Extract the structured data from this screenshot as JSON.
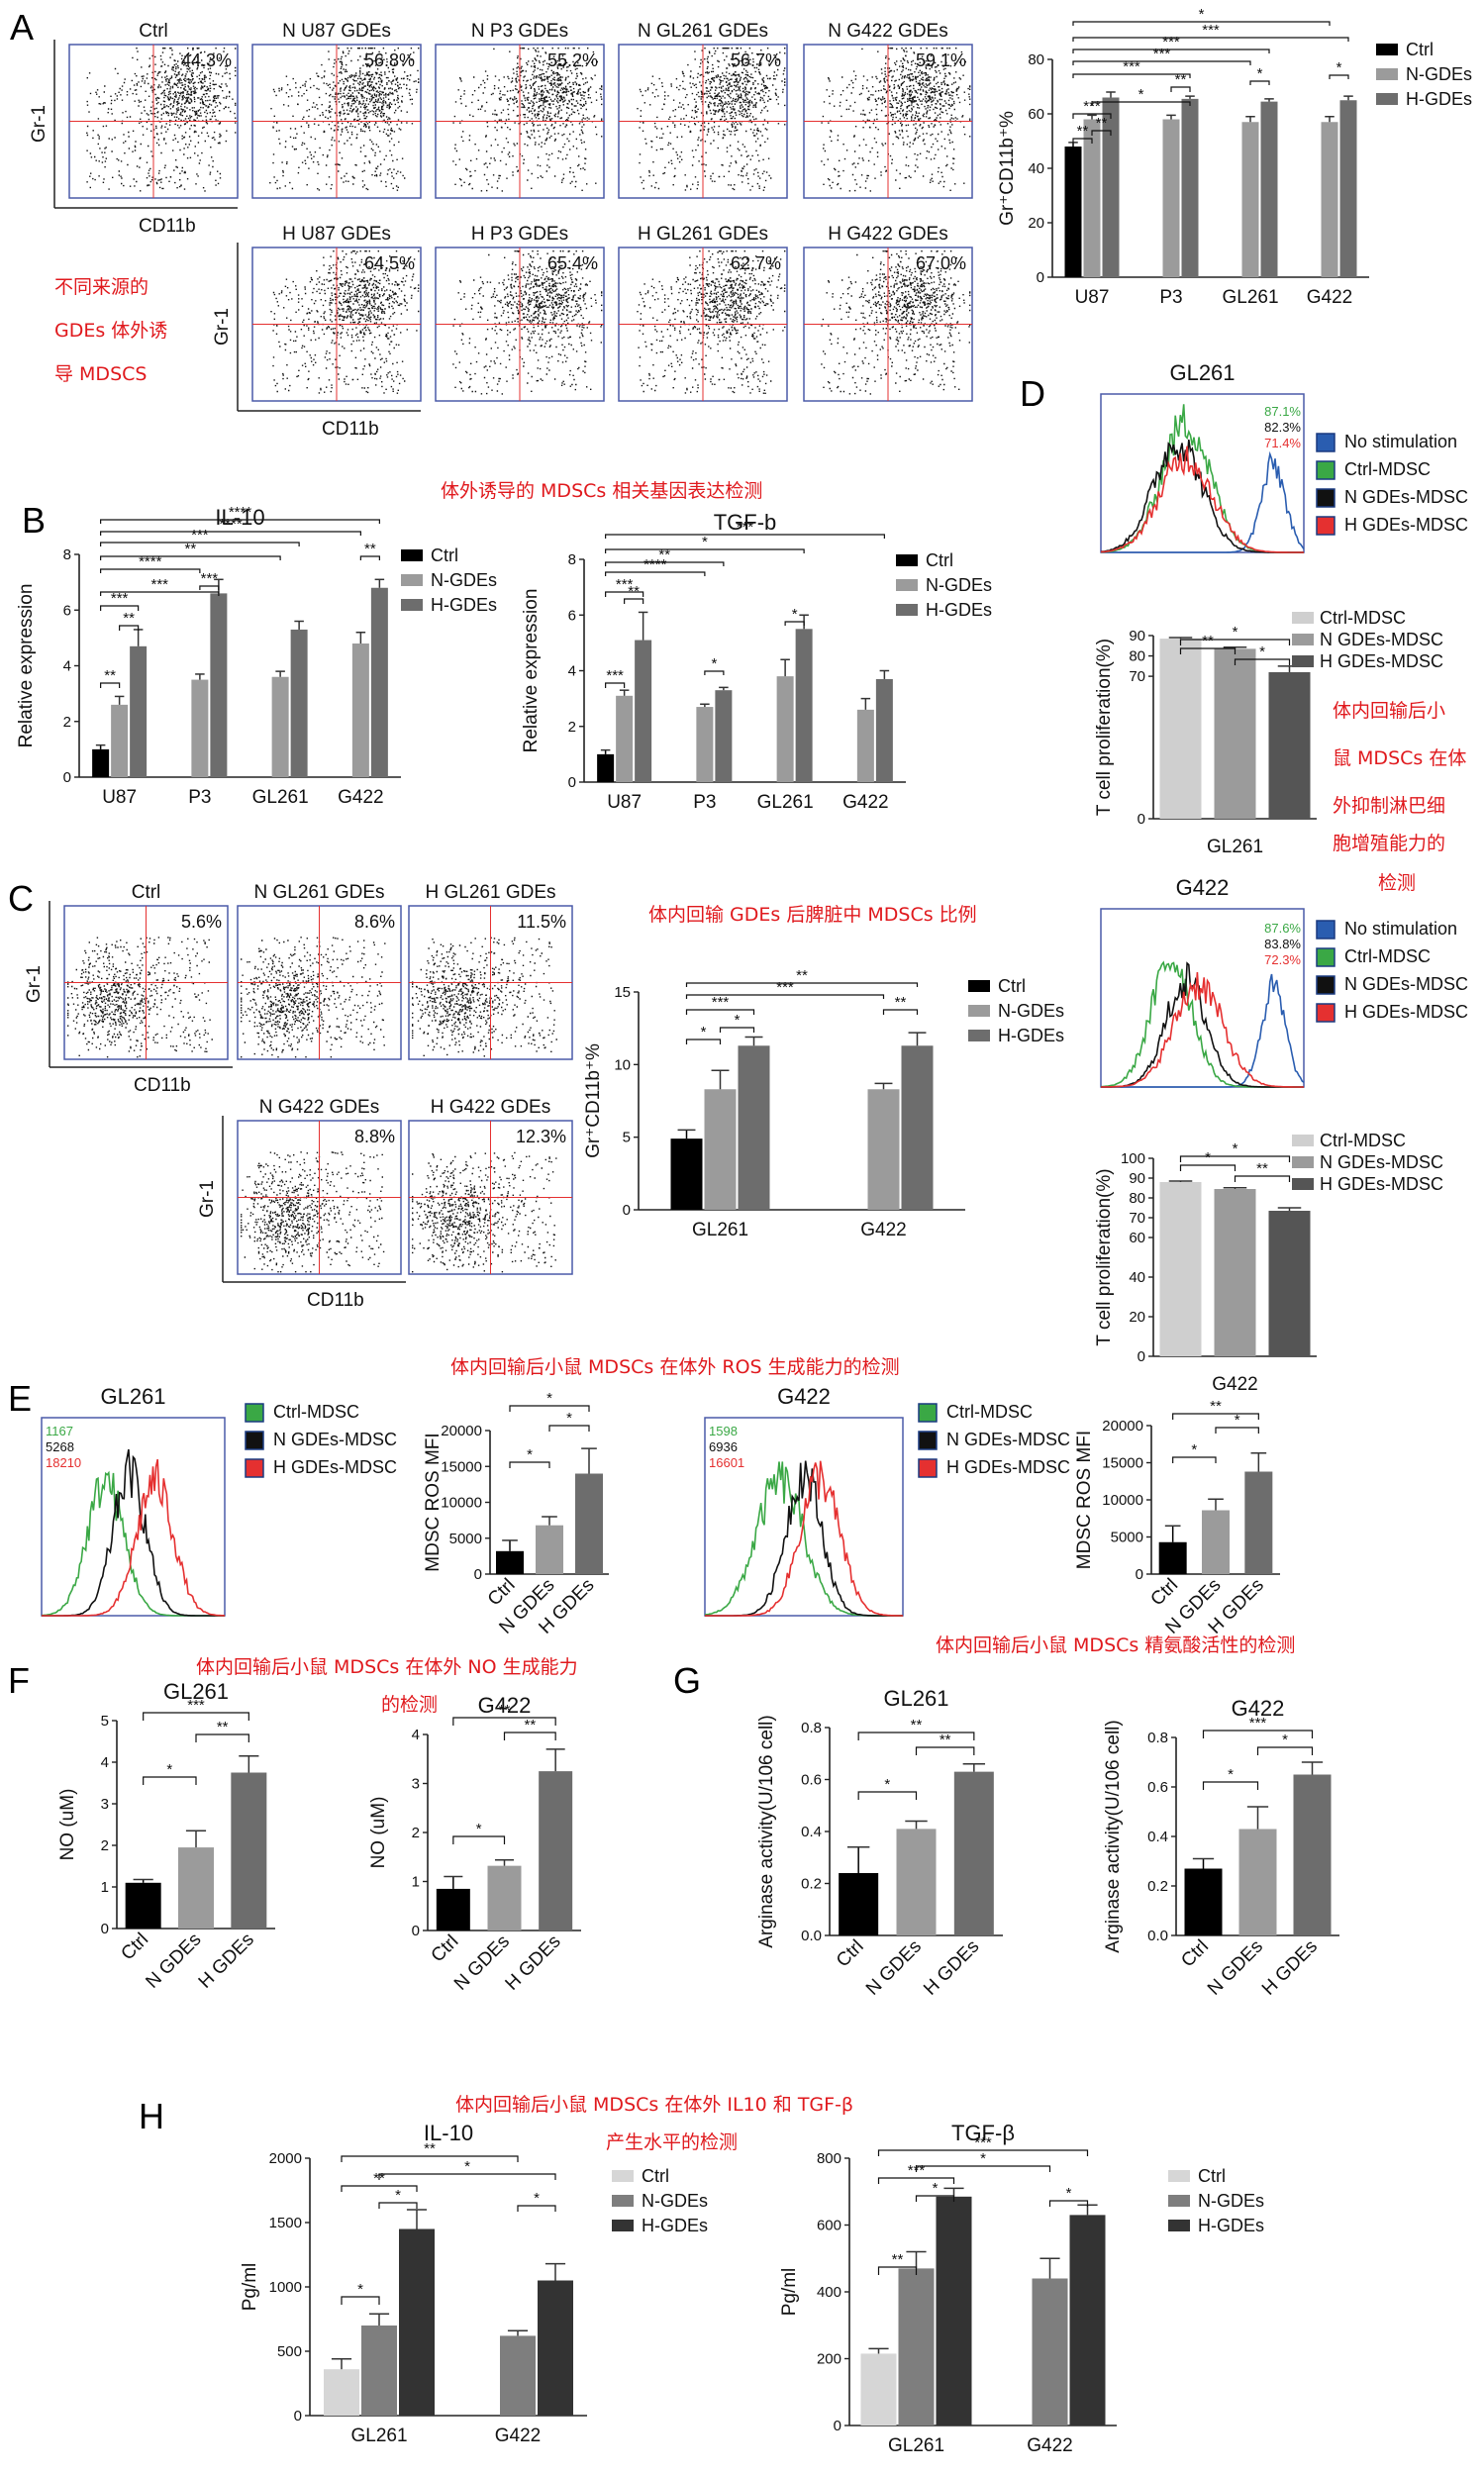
{
  "panels": {
    "A": {
      "letter": "A",
      "flow_plots": [
        {
          "title": "Ctrl",
          "pct": "44.3%"
        },
        {
          "title": "N U87 GDEs",
          "pct": "56.8%"
        },
        {
          "title": "N P3 GDEs",
          "pct": "55.2%"
        },
        {
          "title": "N GL261 GDEs",
          "pct": "56.7%"
        },
        {
          "title": "N G422 GDEs",
          "pct": "59.1%"
        },
        {
          "title": "H U87 GDEs",
          "pct": "64.5%"
        },
        {
          "title": "H P3 GDEs",
          "pct": "65.4%"
        },
        {
          "title": "H GL261 GDEs",
          "pct": "62.7%"
        },
        {
          "title": "H G422 GDEs",
          "pct": "67.0%"
        }
      ],
      "flow_xlabel": "CD11b",
      "flow_ylabel": "Gr-1",
      "annotation": [
        "不同来源的",
        "GDEs 体外诱",
        "导 MDSCS"
      ]
    },
    "B": {
      "letter": "B",
      "annotation": "体外诱导的 MDSCs 相关基因表达检测"
    },
    "C": {
      "letter": "C",
      "flow_plots": [
        {
          "title": "Ctrl",
          "pct": "5.6%"
        },
        {
          "title": "N GL261 GDEs",
          "pct": "8.6%"
        },
        {
          "title": "H GL261 GDEs",
          "pct": "11.5%"
        },
        {
          "title": "N G422 GDEs",
          "pct": "8.8%"
        },
        {
          "title": "H G422 GDEs",
          "pct": "12.3%"
        }
      ],
      "flow_xlabel": "CD11b",
      "flow_ylabel": "Gr-1",
      "annotation": "体内回输 GDEs 后脾脏中 MDSCs 比例"
    },
    "D": {
      "letter": "D",
      "histograms": [
        {
          "title": "GL261",
          "labels": [
            "87.1%",
            "82.3%",
            "71.4%"
          ]
        },
        {
          "title": "G422",
          "labels": [
            "87.6%",
            "83.8%",
            "72.3%"
          ]
        }
      ],
      "legend": [
        "No stimulation",
        "Ctrl-MDSC",
        "N GDEs-MDSC",
        "H GDEs-MDSC"
      ],
      "annotation": [
        "体内回输后小",
        "鼠 MDSCs 在体",
        "外抑制淋巴细",
        "胞增殖能力的",
        "检测"
      ]
    },
    "E": {
      "letter": "E",
      "histograms": [
        {
          "title": "GL261",
          "labels": [
            "1167",
            "5268",
            "18210"
          ]
        },
        {
          "title": "G422",
          "labels": [
            "1598",
            "6936",
            "16601"
          ]
        }
      ],
      "legend": [
        "Ctrl-MDSC",
        "N GDEs-MDSC",
        "H GDEs-MDSC"
      ],
      "annotation": "体内回输后小鼠 MDSCs 在体外 ROS 生成能力的检测"
    },
    "F": {
      "letter": "F",
      "annotation": [
        "体内回输后小鼠 MDSCs 在体外 NO 生成能力",
        "的检测"
      ]
    },
    "G": {
      "letter": "G",
      "annotation": "体内回输后小鼠 MDSCs 精氨酸活性的检测"
    },
    "H": {
      "letter": "H",
      "annotation": [
        "体内回输后小鼠 MDSCs 在体外 IL10 和 TGF-β",
        "产生水平的检测"
      ]
    }
  },
  "colors": {
    "ctrl": "#000000",
    "n": "#9b9b9b",
    "h": "#6d6d6d",
    "axis": "#222222",
    "flow_box": "#4a5aa8",
    "red_text": "#e0191d",
    "green": "#3aa845",
    "blue": "#2a5db0",
    "red": "#e53030"
  },
  "chart_data": [
    {
      "id": "A_bar",
      "type": "bar",
      "ylabel": "Gr⁺CD11b⁺%",
      "categories": [
        "U87",
        "P3",
        "GL261",
        "G422"
      ],
      "ylim": [
        0,
        80
      ],
      "yticks": [
        0,
        20,
        40,
        60,
        80
      ],
      "series": [
        {
          "name": "Ctrl",
          "values": [
            48,
            null,
            null,
            null
          ],
          "errors": [
            1.5,
            null,
            null,
            null
          ]
        },
        {
          "name": "N-GDEs",
          "values": [
            58,
            58,
            57,
            57
          ],
          "errors": [
            1.5,
            1.5,
            2,
            2
          ]
        },
        {
          "name": "H-GDEs",
          "values": [
            66,
            65.5,
            64.5,
            65
          ],
          "errors": [
            2,
            1,
            1,
            1.5
          ]
        }
      ],
      "sig": [
        "**",
        "**",
        "***",
        "*",
        "**",
        "***",
        "***",
        "***",
        "***",
        "*",
        "*",
        "*"
      ]
    },
    {
      "id": "B_il10",
      "type": "bar",
      "title": "IL-10",
      "ylabel": "Relative expression",
      "categories": [
        "U87",
        "P3",
        "GL261",
        "G422"
      ],
      "ylim": [
        0,
        8
      ],
      "yticks": [
        0,
        2,
        4,
        6,
        8
      ],
      "series": [
        {
          "name": "Ctrl",
          "values": [
            1.0,
            null,
            null,
            null
          ],
          "errors": [
            0.15,
            null,
            null,
            null
          ]
        },
        {
          "name": "N-GDEs",
          "values": [
            2.6,
            3.5,
            3.6,
            4.8
          ],
          "errors": [
            0.3,
            0.2,
            0.2,
            0.4
          ]
        },
        {
          "name": "H-GDEs",
          "values": [
            4.7,
            6.6,
            5.3,
            6.8
          ],
          "errors": [
            0.6,
            0.5,
            0.3,
            0.3
          ]
        }
      ],
      "sig": [
        "**",
        "**",
        "***",
        "***",
        "***",
        "****",
        "**",
        "***",
        "****",
        "****",
        "**"
      ]
    },
    {
      "id": "B_tgfb",
      "type": "bar",
      "title": "TGF-b",
      "ylabel": "Relative expression",
      "categories": [
        "U87",
        "P3",
        "GL261",
        "G422"
      ],
      "ylim": [
        0,
        8
      ],
      "yticks": [
        0,
        2,
        4,
        6,
        8
      ],
      "series": [
        {
          "name": "Ctrl",
          "values": [
            1.0,
            null,
            null,
            null
          ],
          "errors": [
            0.15,
            null,
            null,
            null
          ]
        },
        {
          "name": "N-GDEs",
          "values": [
            3.1,
            2.7,
            3.8,
            2.6
          ],
          "errors": [
            0.2,
            0.1,
            0.6,
            0.4
          ]
        },
        {
          "name": "H-GDEs",
          "values": [
            5.1,
            3.3,
            5.5,
            3.7
          ],
          "errors": [
            1.0,
            0.1,
            0.5,
            0.3
          ]
        }
      ],
      "sig": [
        "***",
        "**",
        "***",
        "*",
        "****",
        "**",
        "*",
        "*",
        "***"
      ]
    },
    {
      "id": "C_bar",
      "type": "bar",
      "ylabel": "Gr⁺CD11b⁺%",
      "categories": [
        "GL261",
        "G422"
      ],
      "ylim": [
        0,
        15
      ],
      "yticks": [
        0,
        5,
        10,
        15
      ],
      "series": [
        {
          "name": "Ctrl",
          "values": [
            4.9,
            null
          ],
          "errors": [
            0.6,
            null
          ]
        },
        {
          "name": "N-GDEs",
          "values": [
            8.3,
            8.3
          ],
          "errors": [
            1.3,
            0.4
          ]
        },
        {
          "name": "H-GDEs",
          "values": [
            11.3,
            11.3
          ],
          "errors": [
            0.6,
            0.9
          ]
        }
      ],
      "sig": [
        "*",
        "*",
        "***",
        "**",
        "***",
        "**"
      ]
    },
    {
      "id": "D_gl261",
      "type": "bar",
      "ylabel": "T cell proliferation(%)",
      "xlabel": "GL261",
      "categories": [
        "Ctrl-MDSC",
        "N GDEs-MDSC",
        "H GDEs-MDSC"
      ],
      "ylim": [
        0,
        90
      ],
      "yticks": [
        0,
        70,
        80,
        90
      ],
      "values": [
        88.5,
        83.5,
        72
      ],
      "errors": [
        0.5,
        0.8,
        3
      ],
      "sig": [
        "**",
        "*",
        "*"
      ]
    },
    {
      "id": "D_g422",
      "type": "bar",
      "ylabel": "T cell proliferation(%)",
      "xlabel": "G422",
      "categories": [
        "Ctrl-MDSC",
        "N GDEs-MDSC",
        "H GDEs-MDSC"
      ],
      "ylim": [
        0,
        100
      ],
      "yticks": [
        0,
        20,
        40,
        60,
        70,
        80,
        90,
        100
      ],
      "values": [
        88,
        84.5,
        73.5
      ],
      "errors": [
        0.5,
        0.6,
        1.5
      ],
      "sig": [
        "*",
        "**",
        "*"
      ]
    },
    {
      "id": "E_gl261",
      "type": "bar",
      "ylabel": "MDSC ROS MFI",
      "categories": [
        "Ctrl",
        "N GDEs",
        "H GDEs"
      ],
      "ylim": [
        0,
        20000
      ],
      "yticks": [
        0,
        5000,
        10000,
        15000,
        20000
      ],
      "values": [
        3200,
        6800,
        14000
      ],
      "errors": [
        1500,
        1200,
        3500
      ],
      "sig": [
        "*",
        "*",
        "*"
      ]
    },
    {
      "id": "E_g422",
      "type": "bar",
      "ylabel": "MDSC ROS MFI",
      "categories": [
        "Ctrl",
        "N GDEs",
        "H GDEs"
      ],
      "ylim": [
        0,
        20000
      ],
      "yticks": [
        0,
        5000,
        10000,
        15000,
        20000
      ],
      "values": [
        4300,
        8600,
        13800
      ],
      "errors": [
        2200,
        1500,
        2500
      ],
      "sig": [
        "*",
        "*",
        "**"
      ]
    },
    {
      "id": "F_gl261",
      "type": "bar",
      "title": "GL261",
      "ylabel": "NO (uM)",
      "categories": [
        "Ctrl",
        "N GDEs",
        "H GDEs"
      ],
      "ylim": [
        0,
        5
      ],
      "yticks": [
        0,
        1,
        2,
        3,
        4,
        5
      ],
      "values": [
        1.1,
        1.95,
        3.75
      ],
      "errors": [
        0.08,
        0.4,
        0.4
      ],
      "sig": [
        "*",
        "**",
        "***"
      ]
    },
    {
      "id": "F_g422",
      "type": "bar",
      "title": "G422",
      "ylabel": "NO (uM)",
      "categories": [
        "Ctrl",
        "N GDEs",
        "H GDEs"
      ],
      "ylim": [
        0,
        4
      ],
      "yticks": [
        0,
        1,
        2,
        3,
        4
      ],
      "values": [
        0.85,
        1.32,
        3.25
      ],
      "errors": [
        0.25,
        0.12,
        0.45
      ],
      "sig": [
        "*",
        "**",
        "**"
      ]
    },
    {
      "id": "G_gl261",
      "type": "bar",
      "title": "GL261",
      "ylabel": "Arginase activity(U/106 cell)",
      "categories": [
        "Ctrl",
        "N GDEs",
        "H GDEs"
      ],
      "ylim": [
        0,
        0.8
      ],
      "yticks": [
        0.0,
        0.2,
        0.4,
        0.6,
        0.8
      ],
      "values": [
        0.24,
        0.41,
        0.63
      ],
      "errors": [
        0.1,
        0.03,
        0.03
      ],
      "sig": [
        "*",
        "**",
        "**"
      ]
    },
    {
      "id": "G_g422",
      "type": "bar",
      "title": "G422",
      "ylabel": "Arginase activity(U/106 cell)",
      "categories": [
        "Ctrl",
        "N GDEs",
        "H GDEs"
      ],
      "ylim": [
        0,
        0.8
      ],
      "yticks": [
        0.0,
        0.2,
        0.4,
        0.6,
        0.8
      ],
      "values": [
        0.27,
        0.43,
        0.65
      ],
      "errors": [
        0.04,
        0.09,
        0.05
      ],
      "sig": [
        "*",
        "*",
        "***"
      ]
    },
    {
      "id": "H_il10",
      "type": "bar",
      "title": "IL-10",
      "ylabel": "Pg/ml",
      "categories": [
        "GL261",
        "G422"
      ],
      "ylim": [
        0,
        2000
      ],
      "yticks": [
        0,
        500,
        1000,
        1500,
        2000
      ],
      "series": [
        {
          "name": "Ctrl",
          "values": [
            360,
            null
          ],
          "errors": [
            80,
            null
          ]
        },
        {
          "name": "N-GDEs",
          "values": [
            700,
            620
          ],
          "errors": [
            90,
            40
          ]
        },
        {
          "name": "H-GDEs",
          "values": [
            1450,
            1050
          ],
          "errors": [
            150,
            130
          ]
        }
      ],
      "sig": [
        "*",
        "*",
        "**",
        "*",
        "*",
        "**"
      ]
    },
    {
      "id": "H_tgfb",
      "type": "bar",
      "title": "TGF-β",
      "ylabel": "Pg/ml",
      "categories": [
        "GL261",
        "G422"
      ],
      "ylim": [
        0,
        800
      ],
      "yticks": [
        0,
        200,
        400,
        600,
        800
      ],
      "series": [
        {
          "name": "Ctrl",
          "values": [
            215,
            null
          ],
          "errors": [
            15,
            null
          ]
        },
        {
          "name": "N-GDEs",
          "values": [
            470,
            440
          ],
          "errors": [
            50,
            60
          ]
        },
        {
          "name": "H-GDEs",
          "values": [
            685,
            630
          ],
          "errors": [
            25,
            30
          ]
        }
      ],
      "sig": [
        "**",
        "*",
        "***",
        "*",
        "***",
        "*"
      ]
    }
  ],
  "legend_names": [
    "Ctrl",
    "N-GDEs",
    "H-GDEs"
  ]
}
